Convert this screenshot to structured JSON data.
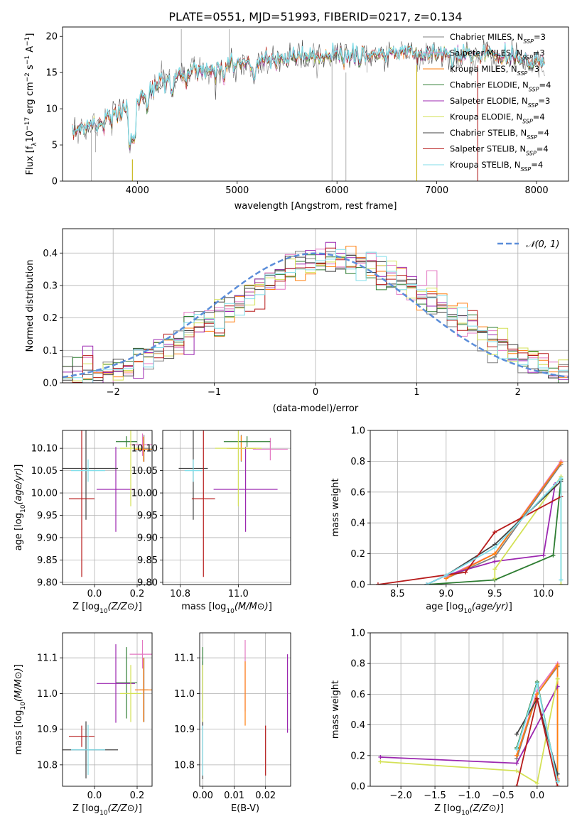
{
  "figure": {
    "title": "PLATE=0551, MJD=51993, FIBERID=0217, z=0.134"
  },
  "models": [
    {
      "name": "Chabrier MILES",
      "label": "Chabrier MILES, N",
      "sub": "SSP",
      "suffix": "=3",
      "color": "#7f7f7f"
    },
    {
      "name": "Salpeter MILES",
      "label": "Salpeter MILES, N",
      "sub": "SSP",
      "suffix": "=3",
      "color": "#e377c2"
    },
    {
      "name": "Kroupa MILES",
      "label": "Kroupa MILES, N",
      "sub": "SSP",
      "suffix": "=3",
      "color": "#ff7f0e"
    },
    {
      "name": "Chabrier ELODIE",
      "label": "Chabrier ELODIE, N",
      "sub": "SSP",
      "suffix": "=4",
      "color": "#2e7d32"
    },
    {
      "name": "Salpeter ELODIE",
      "label": "Salpeter ELODIE, N",
      "sub": "SSP",
      "suffix": "=3",
      "color": "#9c27b0"
    },
    {
      "name": "Kroupa ELODIE",
      "label": "Kroupa ELODIE, N",
      "sub": "SSP",
      "suffix": "=4",
      "color": "#d4e157"
    },
    {
      "name": "Chabrier STELIB",
      "label": "Chabrier STELIB, N",
      "sub": "SSP",
      "suffix": "=4",
      "color": "#424242"
    },
    {
      "name": "Salpeter STELIB",
      "label": "Salpeter STELIB, N",
      "sub": "SSP",
      "suffix": "=4",
      "color": "#b71c1c"
    },
    {
      "name": "Kroupa STELIB",
      "label": "Kroupa STELIB, N",
      "sub": "SSP",
      "suffix": "=4",
      "color": "#80deea"
    }
  ],
  "chart_data": [
    {
      "id": "spectrum",
      "type": "line",
      "xlabel": "wavelength [Angstrom, rest frame]",
      "ylabel_parts": [
        "Flux [f",
        "λ",
        "10",
        "−17",
        " erg cm",
        "−2",
        " s",
        "−1",
        " A",
        "−1",
        "]"
      ],
      "xlim": [
        3250,
        8320
      ],
      "ylim": [
        0,
        21.3
      ],
      "xticks": [
        4000,
        5000,
        6000,
        7000,
        8000
      ],
      "yticks": [
        0,
        5,
        10,
        15,
        20
      ],
      "grid": false,
      "legend": "upper-right",
      "wavelength_range": [
        3350,
        8080
      ],
      "continuum": {
        "x": [
          3350,
          3450,
          3550,
          3650,
          3750,
          3850,
          3950,
          4050,
          4150,
          4250,
          4400,
          4600,
          4800,
          5000,
          5200,
          5400,
          5600,
          5800,
          6000,
          6200,
          6400,
          6600,
          6800,
          7000,
          7200,
          7400,
          7600,
          7800,
          8000,
          8080
        ],
        "y": [
          7.0,
          7.2,
          7.6,
          8.2,
          9.0,
          9.6,
          10.5,
          11.8,
          12.6,
          13.4,
          14.3,
          15.0,
          15.6,
          16.1,
          16.5,
          16.7,
          16.9,
          17.1,
          17.2,
          17.3,
          17.4,
          17.5,
          17.6,
          17.6,
          17.5,
          17.4,
          17.2,
          17.0,
          16.5,
          16.2
        ]
      }
    },
    {
      "id": "residuals",
      "type": "histogram",
      "xlabel": "(data-model)/error",
      "ylabel": "Normed distribution",
      "xlim": [
        -2.5,
        2.5
      ],
      "ylim": [
        0,
        0.475
      ],
      "xticks": [
        -2,
        -1,
        0,
        1,
        2
      ],
      "yticks": [
        0.0,
        0.1,
        0.2,
        0.3,
        0.4
      ],
      "grid": true,
      "bin_width": 0.1,
      "legend": "upper-right",
      "reference_curve": {
        "label": "𝒩(0, 1)",
        "mean": 0,
        "sigma": 1,
        "color": "#5b8dd9"
      }
    },
    {
      "id": "age-vs-Z",
      "type": "errorbar",
      "xlabel": "Z [log10(Z/Z⊙)]",
      "ylabel": "age  [log10(age/yr)]",
      "xlim": [
        -0.15,
        0.27
      ],
      "ylim": [
        9.795,
        10.14
      ],
      "xticks": [
        0.0,
        0.2
      ],
      "yticks": [
        9.8,
        9.85,
        9.9,
        9.95,
        10.0,
        10.05,
        10.1
      ],
      "grid": true,
      "points": [
        {
          "x": 0.232,
          "xerr": 0.02,
          "y": 10.1,
          "yerr": 0.03
        },
        {
          "x": 0.225,
          "xerr": 0.06,
          "y": 10.108,
          "yerr": 0.025
        },
        {
          "x": 0.23,
          "xerr": 0.04,
          "y": 10.098,
          "yerr": 0.028
        },
        {
          "x": 0.15,
          "xerr": 0.05,
          "y": 10.115,
          "yerr": 0.012
        },
        {
          "x": 0.1,
          "xerr": 0.09,
          "y": 10.008,
          "yerr": 0.095
        },
        {
          "x": 0.17,
          "xerr": 0.05,
          "y": 10.1,
          "yerr": 0.13
        },
        {
          "x": -0.04,
          "xerr": 0.15,
          "y": 10.055,
          "yerr": 0.115
        },
        {
          "x": -0.06,
          "xerr": 0.06,
          "y": 9.987,
          "yerr": 0.175
        },
        {
          "x": -0.03,
          "xerr": 0.08,
          "y": 10.05,
          "yerr": 0.025
        }
      ]
    },
    {
      "id": "age-vs-mass",
      "type": "errorbar",
      "xlabel": "mass [log10(M/M⊙)]",
      "ylabel": "",
      "xlim": [
        10.74,
        11.18
      ],
      "ylim": [
        9.795,
        10.14
      ],
      "xticks": [
        10.8,
        11.0
      ],
      "yticks": [
        9.8,
        9.85,
        9.9,
        9.95,
        10.0,
        10.05,
        10.1
      ],
      "grid": true,
      "points": [
        {
          "x": 11.01,
          "xerr": 0.04,
          "y": 10.1,
          "yerr": 0.03
        },
        {
          "x": 11.11,
          "xerr": 0.06,
          "y": 10.098,
          "yerr": 0.025
        },
        {
          "x": 11.01,
          "xerr": 0.05,
          "y": 10.1,
          "yerr": 0.028
        },
        {
          "x": 11.03,
          "xerr": 0.08,
          "y": 10.115,
          "yerr": 0.012
        },
        {
          "x": 11.025,
          "xerr": 0.11,
          "y": 10.008,
          "yerr": 0.095
        },
        {
          "x": 11.0,
          "xerr": 0.08,
          "y": 10.1,
          "yerr": 0.13
        },
        {
          "x": 10.845,
          "xerr": 0.05,
          "y": 10.055,
          "yerr": 0.115
        },
        {
          "x": 10.88,
          "xerr": 0.04,
          "y": 9.987,
          "yerr": 0.175
        },
        {
          "x": 10.845,
          "xerr": 0.03,
          "y": 10.05,
          "yerr": 0.025
        }
      ]
    },
    {
      "id": "mass-weight-vs-age",
      "type": "line",
      "xlabel": "age  [log10(age/yr)]",
      "ylabel": "mass weight",
      "xlim": [
        8.22,
        10.25
      ],
      "ylim": [
        0,
        1.0
      ],
      "xticks": [
        8.5,
        9.0,
        9.5,
        10.0
      ],
      "yticks": [
        0.0,
        0.2,
        0.4,
        0.6,
        0.8,
        1.0
      ],
      "grid": true,
      "series": [
        {
          "x": [
            9.0,
            9.5,
            10.18
          ],
          "y": [
            0.04,
            0.18,
            0.78
          ]
        },
        {
          "x": [
            9.0,
            9.5,
            10.18
          ],
          "y": [
            0.05,
            0.2,
            0.8
          ]
        },
        {
          "x": [
            9.0,
            9.5,
            10.18
          ],
          "y": [
            0.04,
            0.2,
            0.79
          ]
        },
        {
          "x": [
            8.8,
            9.5,
            10.1,
            10.18
          ],
          "y": [
            0.0,
            0.03,
            0.19,
            0.68
          ]
        },
        {
          "x": [
            8.8,
            9.0,
            9.5,
            10.0,
            10.12
          ],
          "y": [
            0.0,
            0.06,
            0.15,
            0.19,
            0.65
          ]
        },
        {
          "x": [
            9.5,
            9.5,
            10.18,
            10.18
          ],
          "y": [
            0.04,
            0.1,
            0.7,
            0.0
          ]
        },
        {
          "x": [
            8.8,
            9.0,
            9.5,
            10.18
          ],
          "y": [
            0.0,
            0.06,
            0.26,
            0.67
          ]
        },
        {
          "x": [
            8.3,
            9.2,
            9.5,
            10.18
          ],
          "y": [
            0.0,
            0.08,
            0.34,
            0.57
          ]
        },
        {
          "x": [
            8.8,
            9.0,
            9.5,
            10.18,
            10.18
          ],
          "y": [
            0.0,
            0.06,
            0.24,
            0.69,
            0.03
          ]
        }
      ]
    },
    {
      "id": "mass-vs-Z",
      "type": "errorbar",
      "xlabel": "Z [log10(Z/Z⊙)]",
      "ylabel": "mass [log10(M/M⊙)]",
      "xlim": [
        -0.15,
        0.27
      ],
      "ylim": [
        10.74,
        11.17
      ],
      "xticks": [
        0.0,
        0.2
      ],
      "yticks": [
        10.8,
        10.9,
        11.0,
        11.1
      ],
      "grid": true,
      "points": [
        {
          "x": 0.232,
          "xerr": 0.02,
          "y": 11.01,
          "yerr": 0.09
        },
        {
          "x": 0.225,
          "xerr": 0.06,
          "y": 11.11,
          "yerr": 0.04
        },
        {
          "x": 0.23,
          "xerr": 0.04,
          "y": 11.01,
          "yerr": 0.09
        },
        {
          "x": 0.15,
          "xerr": 0.05,
          "y": 11.03,
          "yerr": 0.1
        },
        {
          "x": 0.1,
          "xerr": 0.09,
          "y": 11.028,
          "yerr": 0.11
        },
        {
          "x": 0.17,
          "xerr": 0.05,
          "y": 11.0,
          "yerr": 0.08
        },
        {
          "x": -0.04,
          "xerr": 0.15,
          "y": 10.842,
          "yerr": 0.08
        },
        {
          "x": -0.06,
          "xerr": 0.06,
          "y": 10.88,
          "yerr": 0.03
        },
        {
          "x": -0.03,
          "xerr": 0.08,
          "y": 10.842,
          "yerr": 0.07
        }
      ]
    },
    {
      "id": "mass-vs-ebv",
      "type": "errorbar",
      "xlabel": "E(B-V)",
      "ylabel": "",
      "xlim": [
        -0.001,
        0.028
      ],
      "ylim": [
        10.74,
        11.17
      ],
      "xticks": [
        0.0,
        0.01,
        0.02
      ],
      "yticks": [
        10.8,
        10.9,
        11.0,
        11.1
      ],
      "grid": true,
      "points": [
        {
          "x": 0.0,
          "xerr": 0,
          "y": 11.0,
          "yerr": 0.09
        },
        {
          "x": 0.0135,
          "xerr": 0,
          "y": 11.05,
          "yerr": 0.1
        },
        {
          "x": 0.0135,
          "xerr": 0,
          "y": 11.0,
          "yerr": 0.09
        },
        {
          "x": 0.0,
          "xerr": 0,
          "y": 11.03,
          "yerr": 0.1
        },
        {
          "x": 0.027,
          "xerr": 0,
          "y": 11.0,
          "yerr": 0.11
        },
        {
          "x": 0.0,
          "xerr": 0,
          "y": 11.0,
          "yerr": 0.08
        },
        {
          "x": 0.0,
          "xerr": 0,
          "y": 10.84,
          "yerr": 0.08
        },
        {
          "x": 0.02,
          "xerr": 0,
          "y": 10.84,
          "yerr": 0.07
        },
        {
          "x": 0.0,
          "xerr": 0,
          "y": 10.84,
          "yerr": 0.07
        }
      ]
    },
    {
      "id": "mass-weight-vs-Z",
      "type": "line",
      "xlabel": "Z [log10(Z/Z⊙)]",
      "ylabel": "mass weight",
      "xlim": [
        -2.45,
        0.45
      ],
      "ylim": [
        0,
        1.0
      ],
      "xticks": [
        -2.0,
        -1.5,
        -1.0,
        -0.5,
        0.0
      ],
      "yticks": [
        0.0,
        0.2,
        0.4,
        0.6,
        0.8,
        1.0
      ],
      "grid": true,
      "series": [
        {
          "x": [
            -0.3,
            0.0,
            0.3,
            0.3
          ],
          "y": [
            0.18,
            0.6,
            0.78,
            0.04
          ]
        },
        {
          "x": [
            -0.3,
            0.0,
            0.3,
            0.3
          ],
          "y": [
            0.2,
            0.62,
            0.8,
            0.05
          ]
        },
        {
          "x": [
            -0.3,
            0.0,
            0.3,
            0.3
          ],
          "y": [
            0.2,
            0.6,
            0.79,
            0.04
          ]
        },
        {
          "x": [
            -0.3,
            0.0,
            0.3
          ],
          "y": [
            0.25,
            0.68,
            0.03
          ]
        },
        {
          "x": [
            -2.3,
            -0.3,
            0.3
          ],
          "y": [
            0.19,
            0.15,
            0.65
          ]
        },
        {
          "x": [
            -2.3,
            -0.3,
            0.0,
            0.3
          ],
          "y": [
            0.16,
            0.1,
            0.02,
            0.7
          ]
        },
        {
          "x": [
            -0.3,
            0.0,
            0.3
          ],
          "y": [
            0.34,
            0.57,
            0.08
          ]
        },
        {
          "x": [
            -0.3,
            0.0,
            0.3
          ],
          "y": [
            0.0,
            0.57,
            0.0
          ]
        },
        {
          "x": [
            -0.3,
            0.0,
            0.3
          ],
          "y": [
            0.24,
            0.67,
            0.03
          ]
        }
      ]
    }
  ]
}
